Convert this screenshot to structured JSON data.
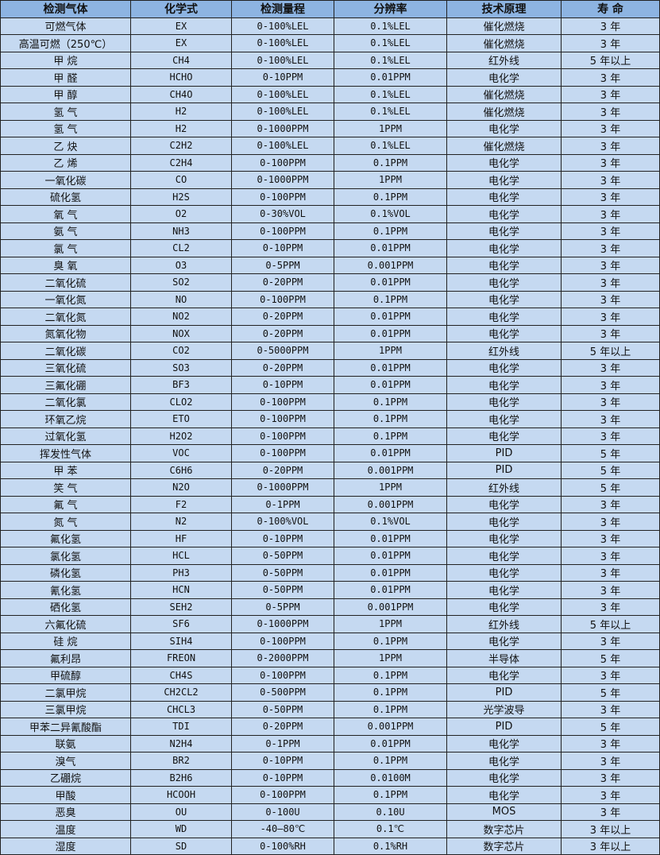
{
  "colors": {
    "header_bg": "#8db4e2",
    "row_bg": "#c5d9f1",
    "border": "#222222"
  },
  "headers": [
    "检测气体",
    "化学式",
    "检测量程",
    "分辨率",
    "技术原理",
    "寿 命"
  ],
  "rows": [
    [
      "可燃气体",
      "EX",
      "0-100%LEL",
      "0.1%LEL",
      "催化燃烧",
      "3 年"
    ],
    [
      "高温可燃（250℃）",
      "EX",
      "0-100%LEL",
      "0.1%LEL",
      "催化燃烧",
      "3 年"
    ],
    [
      "甲 烷",
      "CH4",
      "0-100%LEL",
      "0.1%LEL",
      "红外线",
      "5 年以上"
    ],
    [
      "甲 醛",
      "HCHO",
      "0-10PPM",
      "0.01PPM",
      "电化学",
      "3 年"
    ],
    [
      "甲 醇",
      "CH4O",
      "0-100%LEL",
      "0.1%LEL",
      "催化燃烧",
      "3 年"
    ],
    [
      "氢 气",
      "H2",
      "0-100%LEL",
      "0.1%LEL",
      "催化燃烧",
      "3 年"
    ],
    [
      "氢 气",
      "H2",
      "0-1000PPM",
      "1PPM",
      "电化学",
      "3 年"
    ],
    [
      "乙 炔",
      "C2H2",
      "0-100%LEL",
      "0.1%LEL",
      "催化燃烧",
      "3 年"
    ],
    [
      "乙 烯",
      "C2H4",
      "0-100PPM",
      "0.1PPM",
      "电化学",
      "3 年"
    ],
    [
      "一氧化碳",
      "CO",
      "0-1000PPM",
      "1PPM",
      "电化学",
      "3 年"
    ],
    [
      "硫化氢",
      "H2S",
      "0-100PPM",
      "0.1PPM",
      "电化学",
      "3 年"
    ],
    [
      "氧 气",
      "O2",
      "0-30%VOL",
      "0.1%VOL",
      "电化学",
      "3 年"
    ],
    [
      "氨 气",
      "NH3",
      "0-100PPM",
      "0.1PPM",
      "电化学",
      "3 年"
    ],
    [
      "氯 气",
      "CL2",
      "0-10PPM",
      "0.01PPM",
      "电化学",
      "3 年"
    ],
    [
      "臭 氧",
      "O3",
      "0-5PPM",
      "0.001PPM",
      "电化学",
      "3 年"
    ],
    [
      "二氧化硫",
      "SO2",
      "0-20PPM",
      "0.01PPM",
      "电化学",
      "3 年"
    ],
    [
      "一氧化氮",
      "NO",
      "0-100PPM",
      "0.1PPM",
      "电化学",
      "3 年"
    ],
    [
      "二氧化氮",
      "NO2",
      "0-20PPM",
      "0.01PPM",
      "电化学",
      "3 年"
    ],
    [
      "氮氧化物",
      "NOX",
      "0-20PPM",
      "0.01PPM",
      "电化学",
      "3 年"
    ],
    [
      "二氧化碳",
      "CO2",
      "0-5000PPM",
      "1PPM",
      "红外线",
      "5 年以上"
    ],
    [
      "三氧化硫",
      "SO3",
      "0-20PPM",
      "0.01PPM",
      "电化学",
      "3 年"
    ],
    [
      "三氟化硼",
      "BF3",
      "0-10PPM",
      "0.01PPM",
      "电化学",
      "3 年"
    ],
    [
      "二氧化氯",
      "CLO2",
      "0-100PPM",
      "0.1PPM",
      "电化学",
      "3 年"
    ],
    [
      "环氧乙烷",
      "ETO",
      "0-100PPM",
      "0.1PPM",
      "电化学",
      "3 年"
    ],
    [
      "过氧化氢",
      "H2O2",
      "0-100PPM",
      "0.1PPM",
      "电化学",
      "3 年"
    ],
    [
      "挥发性气体",
      "VOC",
      "0-100PPM",
      "0.01PPM",
      "PID",
      "5 年"
    ],
    [
      "甲 苯",
      "C6H6",
      "0-20PPM",
      "0.001PPM",
      "PID",
      "5 年"
    ],
    [
      "笑 气",
      "N2O",
      "0-1000PPM",
      "1PPM",
      "红外线",
      "5 年"
    ],
    [
      "氟 气",
      "F2",
      "0-1PPM",
      "0.001PPM",
      "电化学",
      "3 年"
    ],
    [
      "氮 气",
      "N2",
      "0-100%VOL",
      "0.1%VOL",
      "电化学",
      "3 年"
    ],
    [
      "氟化氢",
      "HF",
      "0-10PPM",
      "0.01PPM",
      "电化学",
      "3 年"
    ],
    [
      "氯化氢",
      "HCL",
      "0-50PPM",
      "0.01PPM",
      "电化学",
      "3 年"
    ],
    [
      "磷化氢",
      "PH3",
      "0-50PPM",
      "0.01PPM",
      "电化学",
      "3 年"
    ],
    [
      "氰化氢",
      "HCN",
      "0-50PPM",
      "0.01PPM",
      "电化学",
      "3 年"
    ],
    [
      "硒化氢",
      "SEH2",
      "0-5PPM",
      "0.001PPM",
      "电化学",
      "3 年"
    ],
    [
      "六氟化硫",
      "SF6",
      "0-1000PPM",
      "1PPM",
      "红外线",
      "5 年以上"
    ],
    [
      "硅 烷",
      "SIH4",
      "0-100PPM",
      "0.1PPM",
      "电化学",
      "3 年"
    ],
    [
      "氟利昂",
      "FREON",
      "0-2000PPM",
      "1PPM",
      "半导体",
      "5 年"
    ],
    [
      "甲硫醇",
      "CH4S",
      "0-100PPM",
      "0.1PPM",
      "电化学",
      "3 年"
    ],
    [
      "二氯甲烷",
      "CH2CL2",
      "0-500PPM",
      "0.1PPM",
      "PID",
      "5 年"
    ],
    [
      "三氯甲烷",
      "CHCL3",
      "0-50PPM",
      "0.1PPM",
      "光学波导",
      "3 年"
    ],
    [
      "甲苯二异氰酸酯",
      "TDI",
      "0-20PPM",
      "0.001PPM",
      "PID",
      "5 年"
    ],
    [
      "联氨",
      "N2H4",
      "0-1PPM",
      "0.01PPM",
      "电化学",
      "3 年"
    ],
    [
      "溴气",
      "BR2",
      "0-10PPM",
      "0.1PPM",
      "电化学",
      "3 年"
    ],
    [
      "乙硼烷",
      "B2H6",
      "0-10PPM",
      "0.0100M",
      "电化学",
      "3 年"
    ],
    [
      "甲酸",
      "HCOOH",
      "0-100PPM",
      "0.1PPM",
      "电化学",
      "3 年"
    ],
    [
      "恶臭",
      "OU",
      "0-100U",
      "0.10U",
      "MOS",
      "3 年"
    ],
    [
      "温度",
      "WD",
      "-40—80℃",
      "0.1℃",
      "数字芯片",
      "3 年以上"
    ],
    [
      "湿度",
      "SD",
      "0-100%RH",
      "0.1%RH",
      "数字芯片",
      "3 年以上"
    ]
  ]
}
